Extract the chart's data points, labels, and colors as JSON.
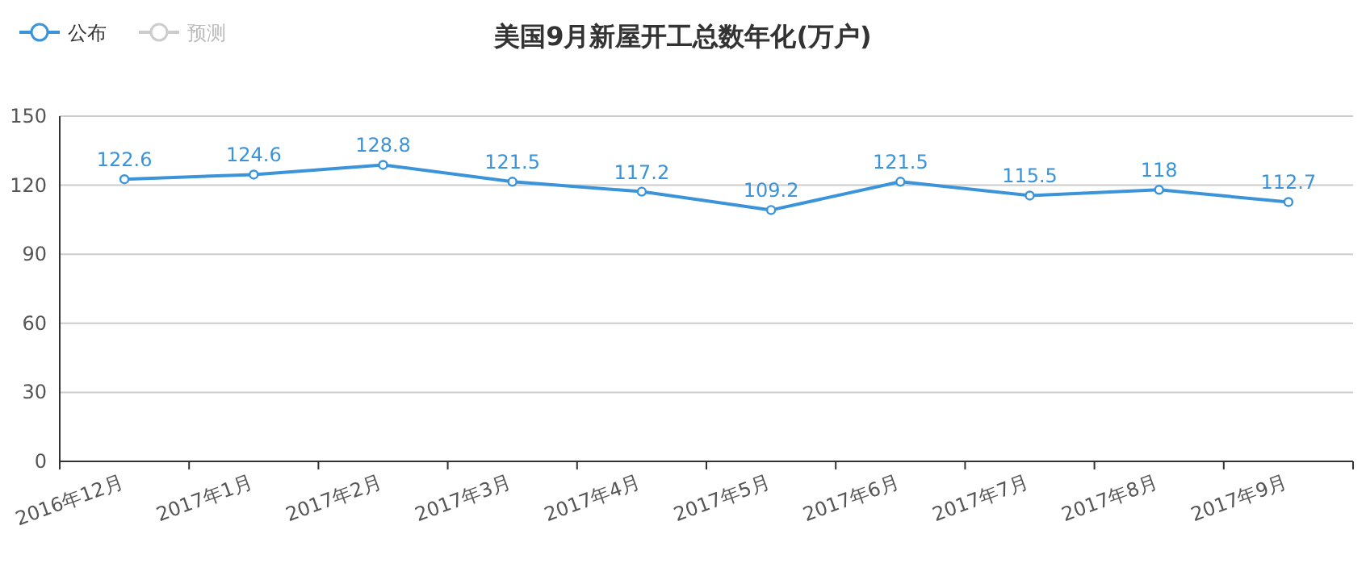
{
  "chart_data": {
    "type": "line",
    "title": "美国9月新屋开工总数年化(万户)",
    "categories": [
      "2016年12月",
      "2017年1月",
      "2017年2月",
      "2017年3月",
      "2017年4月",
      "2017年5月",
      "2017年6月",
      "2017年7月",
      "2017年8月",
      "2017年9月"
    ],
    "series": [
      {
        "name": "公布",
        "color": "#3b94d9",
        "values": [
          122.6,
          124.6,
          128.8,
          121.5,
          117.2,
          109.2,
          121.5,
          115.5,
          118,
          112.7
        ]
      },
      {
        "name": "预测",
        "color": "#cccccc",
        "values": [
          null,
          null,
          null,
          null,
          null,
          null,
          null,
          null,
          null,
          null
        ]
      }
    ],
    "ylim": [
      0,
      150
    ],
    "yticks": [
      0,
      30,
      60,
      90,
      120,
      150
    ],
    "grid": "y",
    "legend": "top left",
    "marker": "circle",
    "line_style": "solid",
    "data_labels": true
  }
}
